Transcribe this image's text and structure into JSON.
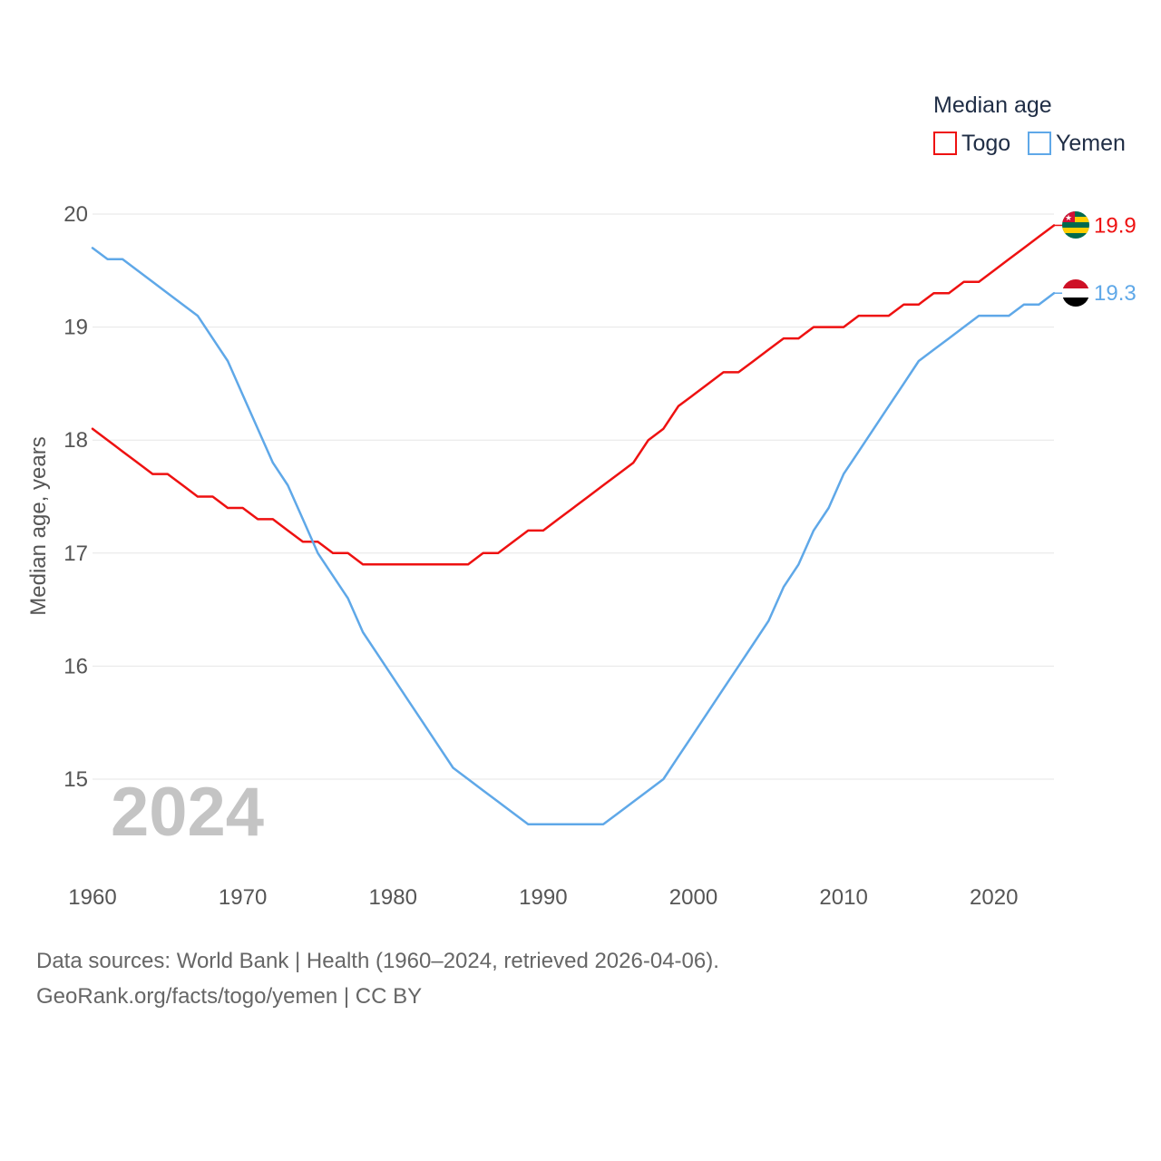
{
  "chart_data": {
    "type": "line",
    "legend_title": "Median age",
    "ylabel": "Median age, years",
    "xlabel": "",
    "ylim": [
      14.2,
      20.2
    ],
    "xlim": [
      1960,
      2024
    ],
    "y_ticks": [
      15,
      16,
      17,
      18,
      19,
      20
    ],
    "x_ticks": [
      1960,
      1970,
      1980,
      1990,
      2000,
      2010,
      2020
    ],
    "year_label": "2024",
    "legend_position": "top-right",
    "series": [
      {
        "name": "Togo",
        "color": "#ee1111",
        "end_label": "19.9",
        "flag": "togo-flag",
        "x": [
          1960,
          1961,
          1962,
          1963,
          1964,
          1965,
          1966,
          1967,
          1968,
          1969,
          1970,
          1971,
          1972,
          1973,
          1974,
          1975,
          1976,
          1977,
          1978,
          1979,
          1980,
          1981,
          1982,
          1983,
          1984,
          1985,
          1986,
          1987,
          1988,
          1989,
          1990,
          1991,
          1992,
          1993,
          1994,
          1995,
          1996,
          1997,
          1998,
          1999,
          2000,
          2001,
          2002,
          2003,
          2004,
          2005,
          2006,
          2007,
          2008,
          2009,
          2010,
          2011,
          2012,
          2013,
          2014,
          2015,
          2016,
          2017,
          2018,
          2019,
          2020,
          2021,
          2022,
          2023,
          2024
        ],
        "values": [
          18.1,
          18.0,
          17.9,
          17.8,
          17.7,
          17.7,
          17.6,
          17.5,
          17.5,
          17.4,
          17.4,
          17.3,
          17.3,
          17.2,
          17.1,
          17.1,
          17.0,
          17.0,
          16.9,
          16.9,
          16.9,
          16.9,
          16.9,
          16.9,
          16.9,
          16.9,
          17.0,
          17.0,
          17.1,
          17.2,
          17.2,
          17.3,
          17.4,
          17.5,
          17.6,
          17.7,
          17.8,
          18.0,
          18.1,
          18.3,
          18.4,
          18.5,
          18.6,
          18.6,
          18.7,
          18.8,
          18.9,
          18.9,
          19.0,
          19.0,
          19.0,
          19.1,
          19.1,
          19.1,
          19.2,
          19.2,
          19.3,
          19.3,
          19.4,
          19.4,
          19.5,
          19.6,
          19.7,
          19.8,
          19.9
        ]
      },
      {
        "name": "Yemen",
        "color": "#5fa8e8",
        "end_label": "19.3",
        "flag": "yemen-flag",
        "x": [
          1960,
          1961,
          1962,
          1963,
          1964,
          1965,
          1966,
          1967,
          1968,
          1969,
          1970,
          1971,
          1972,
          1973,
          1974,
          1975,
          1976,
          1977,
          1978,
          1979,
          1980,
          1981,
          1982,
          1983,
          1984,
          1985,
          1986,
          1987,
          1988,
          1989,
          1990,
          1991,
          1992,
          1993,
          1994,
          1995,
          1996,
          1997,
          1998,
          1999,
          2000,
          2001,
          2002,
          2003,
          2004,
          2005,
          2006,
          2007,
          2008,
          2009,
          2010,
          2011,
          2012,
          2013,
          2014,
          2015,
          2016,
          2017,
          2018,
          2019,
          2020,
          2021,
          2022,
          2023,
          2024
        ],
        "values": [
          19.7,
          19.6,
          19.6,
          19.5,
          19.4,
          19.3,
          19.2,
          19.1,
          18.9,
          18.7,
          18.4,
          18.1,
          17.8,
          17.6,
          17.3,
          17.0,
          16.8,
          16.6,
          16.3,
          16.1,
          15.9,
          15.7,
          15.5,
          15.3,
          15.1,
          15.0,
          14.9,
          14.8,
          14.7,
          14.6,
          14.6,
          14.6,
          14.6,
          14.6,
          14.6,
          14.7,
          14.8,
          14.9,
          15.0,
          15.2,
          15.4,
          15.6,
          15.8,
          16.0,
          16.2,
          16.4,
          16.7,
          16.9,
          17.2,
          17.4,
          17.7,
          17.9,
          18.1,
          18.3,
          18.5,
          18.7,
          18.8,
          18.9,
          19.0,
          19.1,
          19.1,
          19.1,
          19.2,
          19.2,
          19.3
        ]
      }
    ]
  },
  "footer": {
    "sources": "Data sources: World Bank | Health (1960–2024, retrieved 2026-04-06).",
    "credit": "GeoRank.org/facts/togo/yemen | CC BY"
  }
}
